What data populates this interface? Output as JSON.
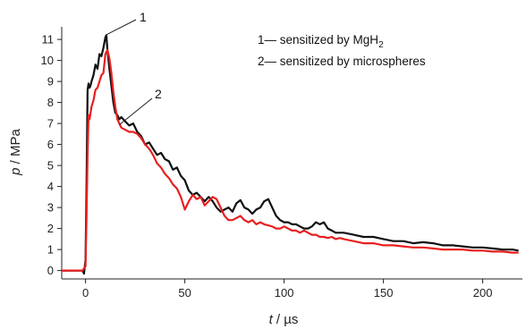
{
  "chart_data": {
    "type": "line",
    "xlabel_var": "t",
    "xlabel_unit": " / µs",
    "ylabel_var": "p",
    "ylabel_unit": " / MPa",
    "xlim": [
      -12,
      220
    ],
    "ylim": [
      -0.4,
      11.6
    ],
    "xticks": [
      0,
      50,
      100,
      150,
      200
    ],
    "yticks": [
      0,
      1,
      2,
      3,
      4,
      5,
      6,
      7,
      8,
      9,
      10,
      11
    ],
    "grid": false,
    "legend_position": "top-right",
    "legend": [
      {
        "prefix": "1— sensitized by MgH",
        "sub": "2",
        "suffix": ""
      },
      {
        "prefix": "2— sensitized by microspheres",
        "sub": "",
        "suffix": ""
      }
    ],
    "annotations": [
      {
        "text": "1",
        "x": 10,
        "y": 11.2
      },
      {
        "text": "2",
        "x": 17,
        "y": 7.7
      }
    ],
    "series": [
      {
        "name": "1",
        "color": "#111111",
        "x": [
          -12,
          -1.5,
          -0.8,
          0,
          0.5,
          1,
          1.5,
          2,
          2.5,
          3,
          4,
          5,
          6,
          7,
          8,
          9,
          10,
          10.5,
          11,
          12,
          13,
          14,
          15,
          16,
          17,
          18,
          20,
          22,
          24,
          26,
          28,
          30,
          32,
          34,
          36,
          38,
          40,
          42,
          44,
          46,
          48,
          50,
          52,
          54,
          56,
          58,
          60,
          62,
          64,
          66,
          68,
          70,
          72,
          74,
          76,
          78,
          80,
          82,
          84,
          86,
          88,
          90,
          92,
          94,
          96,
          98,
          100,
          102,
          104,
          106,
          108,
          110,
          112,
          114,
          116,
          118,
          120,
          122,
          124,
          126,
          128,
          130,
          135,
          140,
          145,
          150,
          155,
          160,
          165,
          170,
          175,
          180,
          185,
          190,
          195,
          200,
          205,
          210,
          215,
          218
        ],
        "y": [
          0,
          0,
          -0.15,
          0.5,
          4,
          8.6,
          8.9,
          8.7,
          8.8,
          9.0,
          9.3,
          9.8,
          9.6,
          10.3,
          10.2,
          10.6,
          11.1,
          11.2,
          10.5,
          9.6,
          8.8,
          8.0,
          7.5,
          7.4,
          7.2,
          7.3,
          7.1,
          6.9,
          7.0,
          6.6,
          6.4,
          6.0,
          6.1,
          5.8,
          5.5,
          5.6,
          5.3,
          5.2,
          4.8,
          4.9,
          4.5,
          4.3,
          3.8,
          3.6,
          3.7,
          3.5,
          3.3,
          3.5,
          3.3,
          3.0,
          2.8,
          2.9,
          3.0,
          2.8,
          3.2,
          3.35,
          3.0,
          2.9,
          2.7,
          2.9,
          3.0,
          3.3,
          3.4,
          3.0,
          2.6,
          2.4,
          2.3,
          2.3,
          2.2,
          2.2,
          2.1,
          2.0,
          2.0,
          2.1,
          2.3,
          2.2,
          2.3,
          2.0,
          1.9,
          1.8,
          1.8,
          1.8,
          1.7,
          1.6,
          1.6,
          1.5,
          1.4,
          1.4,
          1.3,
          1.35,
          1.3,
          1.2,
          1.2,
          1.15,
          1.1,
          1.1,
          1.05,
          1.0,
          1.0,
          0.95
        ]
      },
      {
        "name": "2",
        "color": "#e8201f",
        "x": [
          -12,
          -1.5,
          0,
          0.5,
          1,
          1.5,
          2,
          3,
          4,
          5,
          6,
          7,
          8,
          9,
          10,
          11,
          12,
          13,
          14,
          15,
          16,
          18,
          20,
          22,
          24,
          26,
          28,
          30,
          32,
          34,
          36,
          38,
          40,
          42,
          44,
          46,
          48,
          50,
          52,
          54,
          56,
          58,
          60,
          62,
          64,
          66,
          68,
          70,
          72,
          74,
          76,
          78,
          80,
          82,
          84,
          86,
          88,
          90,
          92,
          94,
          96,
          98,
          100,
          102,
          104,
          106,
          108,
          110,
          112,
          114,
          116,
          118,
          120,
          122,
          124,
          126,
          128,
          130,
          135,
          140,
          145,
          150,
          155,
          160,
          165,
          170,
          175,
          180,
          185,
          190,
          195,
          200,
          205,
          210,
          215,
          218
        ],
        "y": [
          0,
          0,
          0.2,
          2.5,
          5.5,
          7.4,
          7.2,
          7.8,
          8.1,
          8.6,
          8.7,
          9.0,
          9.3,
          9.4,
          10.3,
          10.5,
          10.1,
          9.4,
          8.5,
          7.8,
          7.2,
          6.8,
          6.7,
          6.6,
          6.6,
          6.5,
          6.3,
          6.0,
          5.8,
          5.5,
          5.1,
          4.9,
          4.6,
          4.4,
          4.1,
          3.9,
          3.5,
          2.9,
          3.3,
          3.6,
          3.4,
          3.5,
          3.1,
          3.3,
          3.5,
          3.4,
          3.0,
          2.6,
          2.4,
          2.4,
          2.5,
          2.6,
          2.4,
          2.3,
          2.4,
          2.2,
          2.3,
          2.2,
          2.15,
          2.1,
          2.0,
          2.0,
          2.1,
          2.0,
          1.9,
          1.9,
          1.8,
          1.9,
          1.8,
          1.7,
          1.7,
          1.6,
          1.6,
          1.55,
          1.6,
          1.5,
          1.55,
          1.5,
          1.4,
          1.3,
          1.3,
          1.2,
          1.2,
          1.15,
          1.1,
          1.1,
          1.05,
          1.0,
          1.0,
          1.0,
          0.95,
          0.95,
          0.9,
          0.9,
          0.85,
          0.85
        ]
      }
    ]
  }
}
